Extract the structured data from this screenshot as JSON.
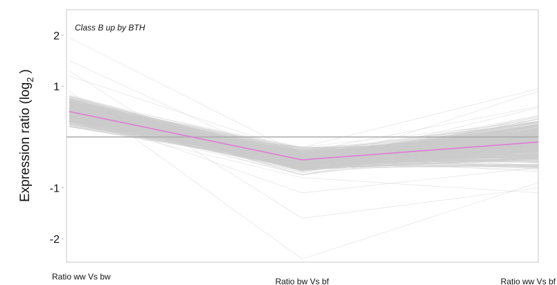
{
  "chart_data": {
    "type": "line",
    "title": "Class B up by BTH",
    "ylabel": "Expression ratio (log",
    "ylabel_subscript": "2",
    "ylabel_suffix": " )",
    "categories": [
      "Ratio ww Vs bw",
      "Ratio bw Vs bf",
      "Ratio ww Vs bf"
    ],
    "yticks": [
      2,
      1,
      -1,
      -2
    ],
    "ylim": [
      -2.4,
      2.4
    ],
    "reference_line": 0,
    "grid": false,
    "series": [
      {
        "values": [
          0.5,
          -0.45,
          -0.1
        ],
        "color": "#e07ad6",
        "role": "average"
      }
    ],
    "gene_profiles": {
      "color": "#cccccc",
      "count": 600,
      "sample_profiles": [
        [
          1.95,
          -0.35,
          0.2
        ],
        [
          1.5,
          -0.6,
          0.9
        ],
        [
          1.3,
          -1.6,
          -1.0
        ],
        [
          0.9,
          -2.4,
          -0.9
        ],
        [
          0.5,
          -1.1,
          -0.6
        ],
        [
          0.2,
          -0.2,
          0.95
        ],
        [
          0.3,
          -0.8,
          -1.1
        ],
        [
          1.2,
          -0.3,
          0.6
        ]
      ],
      "ranges": [
        [
          0.2,
          1.95
        ],
        [
          -2.4,
          -0.2
        ],
        [
          -1.15,
          0.95
        ]
      ]
    }
  }
}
